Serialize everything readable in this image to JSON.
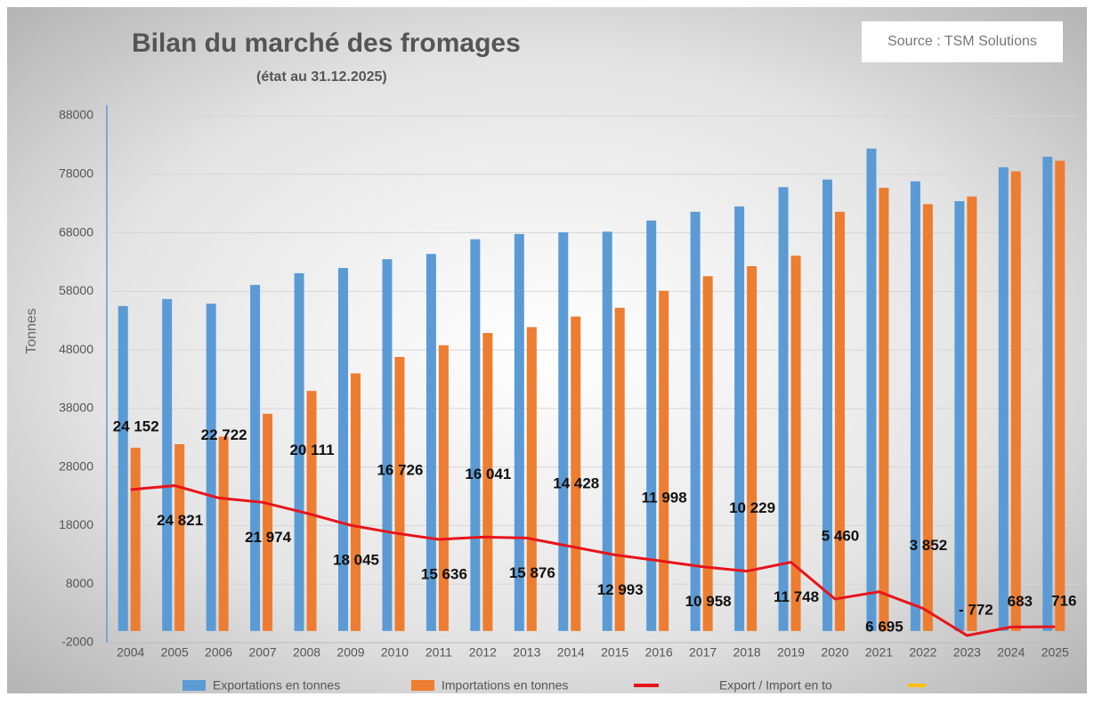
{
  "chart_data": {
    "type": "bar_line",
    "title": "Bilan du marché des fromages",
    "subtitle": "(état au 31.12.2025)",
    "source": "Source : TSM Solutions",
    "y_label": "Tonnes",
    "categories": [
      "2004",
      "2005",
      "2006",
      "2007",
      "2008",
      "2009",
      "2010",
      "2011",
      "2012",
      "2013",
      "2014",
      "2015",
      "2016",
      "2017",
      "2018",
      "2019",
      "2020",
      "2021",
      "2022",
      "2023",
      "2024",
      "2025"
    ],
    "series": [
      {
        "name": "Exportations en tonnes",
        "color": "#5b9bd5",
        "kind": "bar",
        "values": [
          55500,
          56700,
          55900,
          59100,
          61100,
          62000,
          63500,
          64400,
          66900,
          67800,
          68100,
          68200,
          70100,
          71600,
          72500,
          75800,
          77100,
          82400,
          76800,
          73400,
          79200,
          81000
        ]
      },
      {
        "name": "Importations en tonnes",
        "color": "#ed7d31",
        "kind": "bar",
        "values": [
          31300,
          31900,
          33200,
          37100,
          41000,
          44000,
          46800,
          48800,
          50900,
          51900,
          53700,
          55200,
          58100,
          60600,
          62300,
          64100,
          71600,
          75700,
          72900,
          74200,
          78500,
          80300
        ]
      },
      {
        "name": "Export / Import en to",
        "color": "#e8141b",
        "kind": "line",
        "values": [
          24152,
          24821,
          22722,
          21974,
          20111,
          18045,
          16726,
          15636,
          16041,
          15876,
          14428,
          12993,
          11998,
          10958,
          10229,
          11748,
          5460,
          6695,
          3852,
          -772,
          683,
          716
        ],
        "value_labels": [
          "24 152",
          "24 821",
          "22 722",
          "21 974",
          "20 111",
          "18 045",
          "16 726",
          "15 636",
          "16 041",
          "15 876",
          "14 428",
          "12 993",
          "11 998",
          "10 958",
          "10 229",
          "11 748",
          "5 460",
          "6 695",
          "3 852",
          "- 772",
          "683",
          "716"
        ]
      }
    ],
    "ylim": [
      -2000,
      88000
    ],
    "yticks": [
      -2000,
      8000,
      18000,
      28000,
      38000,
      48000,
      58000,
      68000,
      78000,
      88000
    ],
    "grid": true
  }
}
